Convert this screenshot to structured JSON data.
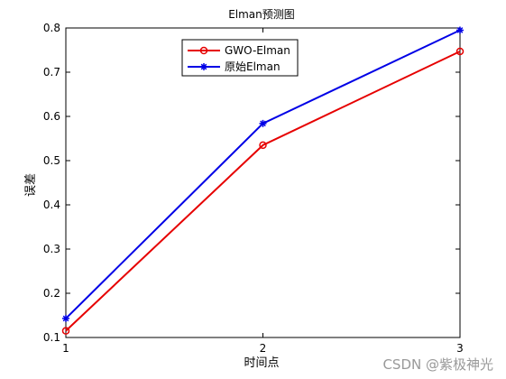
{
  "chart_data": {
    "type": "line",
    "title": "Elman预测图",
    "xlabel": "时间点",
    "ylabel": "误差",
    "x": [
      1,
      2,
      3
    ],
    "xlim": [
      1,
      3
    ],
    "ylim": [
      0.1,
      0.8
    ],
    "xticks": [
      1,
      2,
      3
    ],
    "yticks": [
      0.1,
      0.2,
      0.3,
      0.4,
      0.5,
      0.6,
      0.7,
      0.8
    ],
    "grid": false,
    "legend_position": "top-center",
    "series": [
      {
        "name": "GWO-Elman",
        "values": [
          0.115,
          0.535,
          0.747
        ],
        "color": "#e60000",
        "marker": "circle"
      },
      {
        "name": "原始Elman",
        "values": [
          0.143,
          0.584,
          0.795
        ],
        "color": "#0000e6",
        "marker": "star"
      }
    ]
  },
  "watermark": "CSDN @紫极神光"
}
